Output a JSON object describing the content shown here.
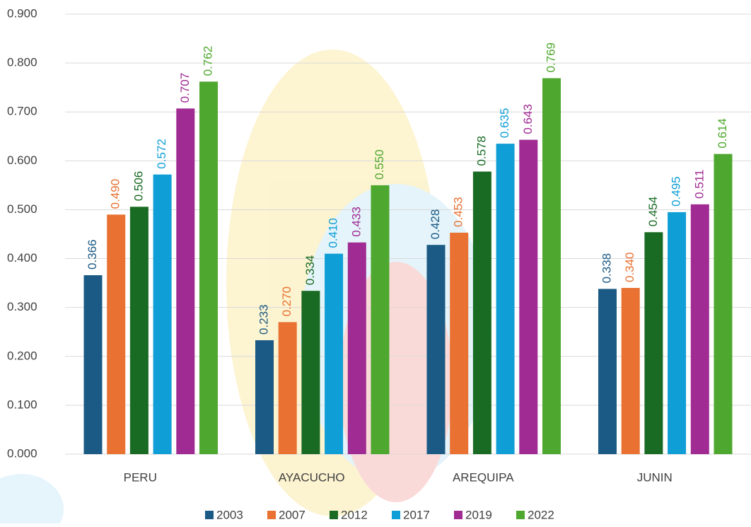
{
  "chart_data": {
    "type": "bar",
    "categories": [
      "PERU",
      "AYACUCHO",
      "AREQUIPA",
      "JUNIN"
    ],
    "series": [
      {
        "name": "2003",
        "color": "#1b5a84",
        "values": [
          0.366,
          0.233,
          0.428,
          0.338
        ],
        "value_labels": [
          "0.366",
          "0.233",
          "0.428",
          "0.338"
        ]
      },
      {
        "name": "2007",
        "color": "#e97132",
        "values": [
          0.49,
          0.27,
          0.453,
          0.34
        ],
        "value_labels": [
          "0.490",
          "0.270",
          "0.453",
          "0.340"
        ]
      },
      {
        "name": "2012",
        "color": "#196b24",
        "values": [
          0.506,
          0.334,
          0.578,
          0.454
        ],
        "value_labels": [
          "0.506",
          "0.334",
          "0.578",
          "0.454"
        ]
      },
      {
        "name": "2017",
        "color": "#0f9ed5",
        "values": [
          0.572,
          0.41,
          0.635,
          0.495
        ],
        "value_labels": [
          "0.572",
          "0.410",
          "0.635",
          "0.495"
        ]
      },
      {
        "name": "2019",
        "color": "#a02b93",
        "values": [
          0.707,
          0.433,
          0.643,
          0.511
        ],
        "value_labels": [
          "0.707",
          "0.433",
          "0.643",
          "0.511"
        ]
      },
      {
        "name": "2022",
        "color": "#4ea72e",
        "values": [
          0.762,
          0.55,
          0.769,
          0.614
        ],
        "value_labels": [
          "0.762",
          "0.550",
          "0.769",
          "0.614"
        ]
      }
    ],
    "ylim": [
      0,
      0.9
    ],
    "yticks": [
      {
        "value": 0,
        "label": "0.000"
      },
      {
        "value": 0.1,
        "label": "0.100"
      },
      {
        "value": 0.2,
        "label": "0.200"
      },
      {
        "value": 0.3,
        "label": "0.300"
      },
      {
        "value": 0.4,
        "label": "0.400"
      },
      {
        "value": 0.5,
        "label": "0.500"
      },
      {
        "value": 0.6,
        "label": "0.600"
      },
      {
        "value": 0.7,
        "label": "0.700"
      },
      {
        "value": 0.8,
        "label": "0.800"
      },
      {
        "value": 0.9,
        "label": "0.900"
      }
    ],
    "grid": true,
    "legend": "bottom"
  }
}
